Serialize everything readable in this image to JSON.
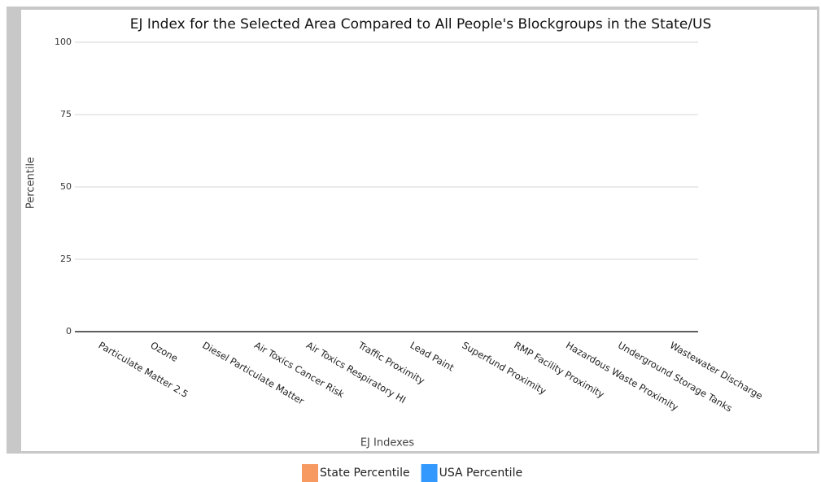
{
  "chart_data": {
    "type": "bar",
    "title": "EJ Index for the Selected Area Compared to All People's Blockgroups in the State/US",
    "x_label": "EJ Indexes",
    "y_label": "Percentile",
    "categories": [
      "Particulate Matter 2.5",
      "Ozone",
      "Diesel Particulate Matter",
      "Air Toxics Cancer Risk",
      "Air Toxics Respiratory HI",
      "Traffic Proximity",
      "Lead Paint",
      "Superfund Proximity",
      "RMP Facility Proximity",
      "Hazardous Waste Proximity",
      "Underground Storage Tanks",
      "Wastewater Discharge"
    ],
    "series": [
      {
        "name": "State Percentile",
        "color": "#f79a62",
        "values": [
          null,
          null,
          null,
          null,
          null,
          null,
          null,
          null,
          null,
          null,
          null,
          null
        ]
      },
      {
        "name": "USA Percentile",
        "color": "#3399ff",
        "values": [
          null,
          null,
          null,
          null,
          null,
          null,
          null,
          null,
          null,
          null,
          null,
          null
        ]
      }
    ],
    "ylim": [
      0,
      100
    ],
    "yticks": [
      0,
      25,
      50,
      75,
      100
    ],
    "grid": true,
    "legend": "bottom"
  }
}
